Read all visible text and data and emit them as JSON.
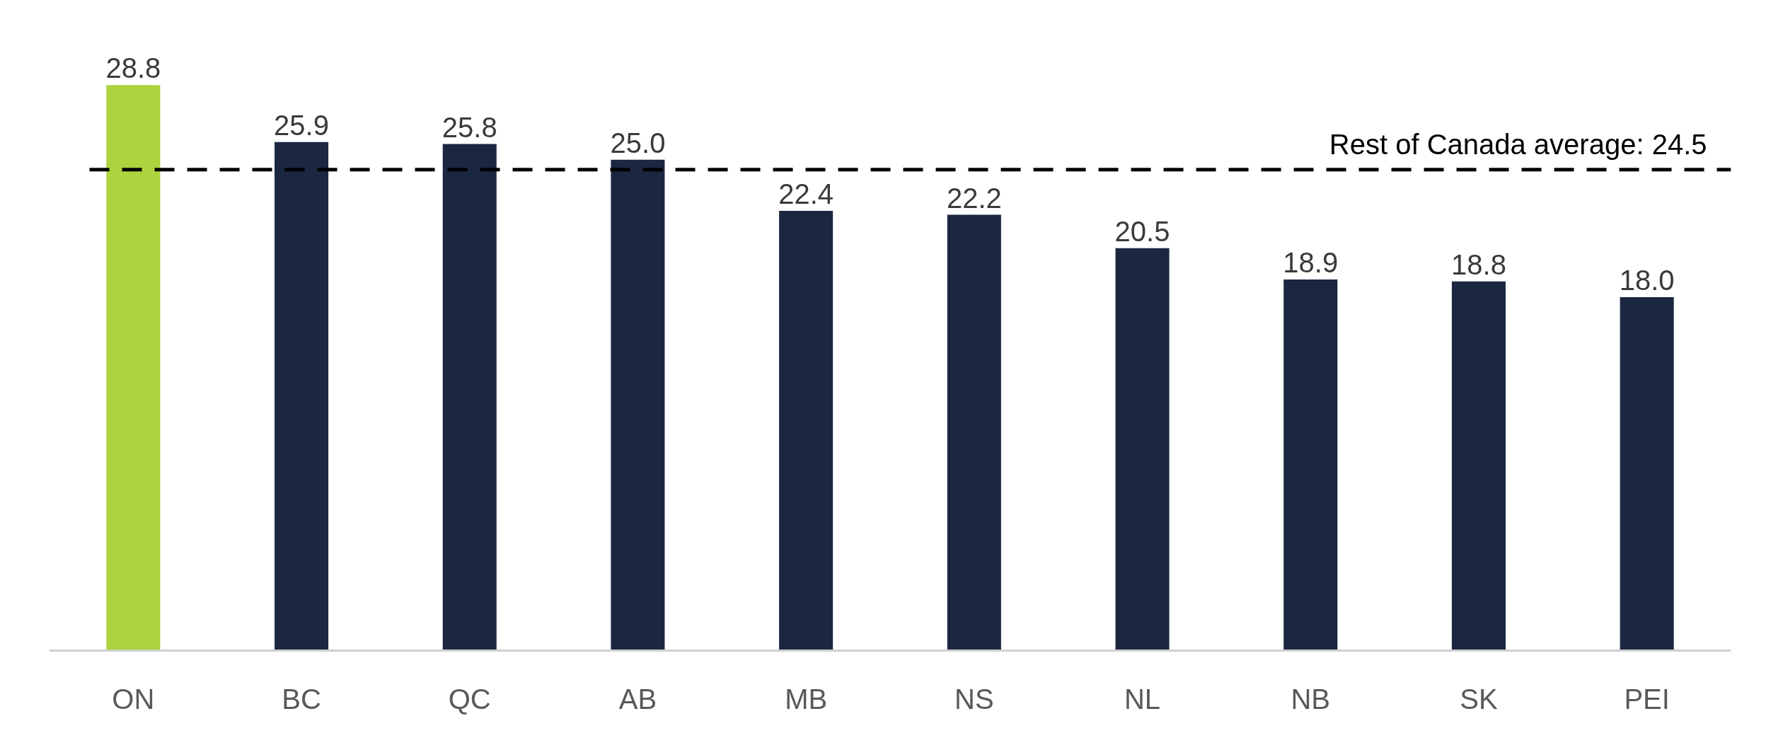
{
  "chart_data": {
    "type": "bar",
    "categories": [
      "ON",
      "BC",
      "QC",
      "AB",
      "MB",
      "NS",
      "NL",
      "NB",
      "SK",
      "PEI"
    ],
    "values": [
      28.8,
      25.9,
      25.8,
      25.0,
      22.4,
      22.2,
      20.5,
      18.9,
      18.8,
      18.0
    ],
    "value_labels": [
      "28.8",
      "25.9",
      "25.8",
      "25.0",
      "22.4",
      "22.2",
      "20.5",
      "18.9",
      "18.8",
      "18.0"
    ],
    "colors": [
      "#acd43f",
      "#1b2741",
      "#1b2741",
      "#1b2741",
      "#1b2741",
      "#1b2741",
      "#1b2741",
      "#1b2741",
      "#1b2741",
      "#1b2741"
    ],
    "tick_labels": "x",
    "ref_lines": [
      {
        "axis": "y",
        "value": 24.5,
        "label": "Rest of Canada average: 24.5",
        "color": "#000000",
        "line_style": "dashed"
      }
    ]
  }
}
